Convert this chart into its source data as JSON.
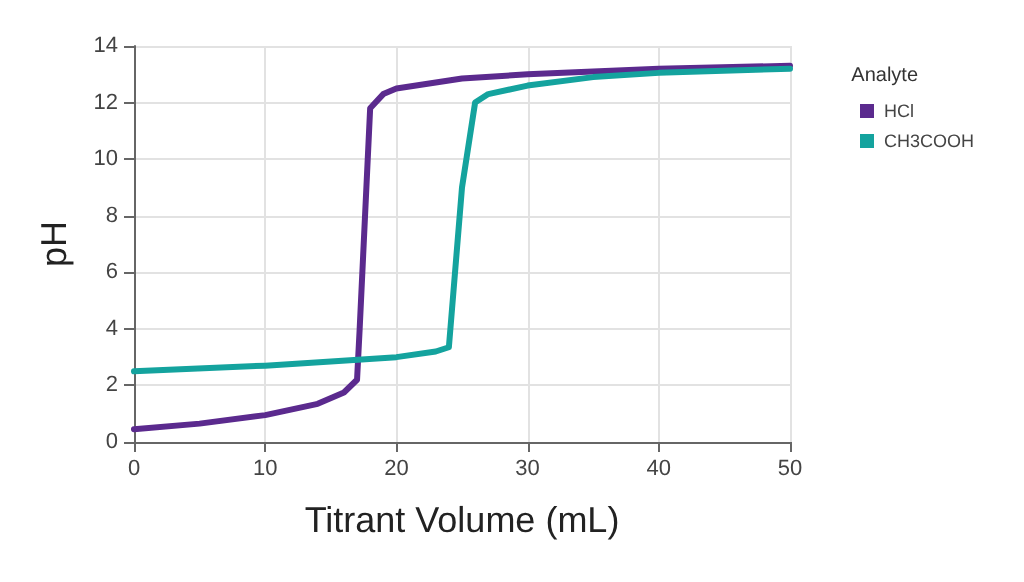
{
  "chart_data": {
    "type": "line",
    "xlabel": "Titrant Volume (mL)",
    "ylabel": "pH",
    "legend_title": "Analyte",
    "legend": "top right",
    "grid": true,
    "marker": "none",
    "line_style": "solid",
    "xlim": [
      0,
      50
    ],
    "xticks": [
      0,
      10,
      20,
      30,
      40,
      50
    ],
    "ylim": [
      0,
      14
    ],
    "yticks": [
      0,
      2,
      4,
      6,
      8,
      10,
      12,
      14
    ],
    "series": [
      {
        "name": "HCl",
        "color": "#5b2a8e",
        "x": [
          0,
          5,
          10,
          14,
          16,
          17,
          17.2,
          18,
          19,
          20,
          25,
          30,
          40,
          50
        ],
        "values": [
          0.45,
          0.65,
          0.95,
          1.35,
          1.75,
          2.2,
          4,
          11.8,
          12.3,
          12.5,
          12.85,
          13,
          13.2,
          13.3
        ]
      },
      {
        "name": "CH3COOH",
        "color": "#14a39e",
        "x": [
          0,
          10,
          20,
          23,
          24,
          25,
          26,
          27,
          30,
          35,
          40,
          50
        ],
        "values": [
          2.5,
          2.7,
          3,
          3.2,
          3.35,
          9,
          12,
          12.3,
          12.6,
          12.9,
          13.05,
          13.2
        ]
      }
    ]
  }
}
